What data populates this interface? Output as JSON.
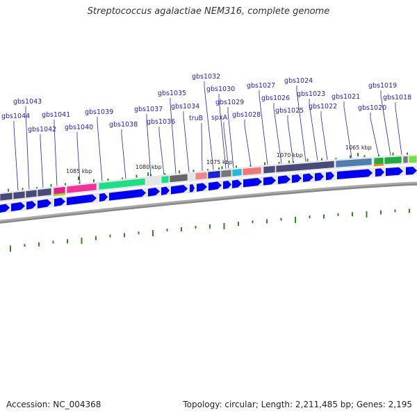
{
  "title": "Streptococcus agalactiae NEM316, complete genome",
  "footer": {
    "accession": "Accession: NC_004368",
    "summary": "Topology: circular; Length: 2,211,485 bp; Genes: 2,195"
  },
  "colors": {
    "forward_gene": "#0000ee",
    "track_band": "#e6e6e6",
    "backbone": "#888888",
    "gc_tick": "#2a8a1a",
    "label_line": "#1f1fb3"
  },
  "kbp_markers": [
    "1085 kbp",
    "1080 kbp",
    "1075 kbp",
    "1070 kbp",
    "1065 kbp"
  ],
  "gene_labels": [
    "gbs1044",
    "gbs1043",
    "gbs1042",
    "gbs1041",
    "gbs1040",
    "gbs1039",
    "gbs1038",
    "gbs1037",
    "gbs1036",
    "gbs1035",
    "gbs1034",
    "truB",
    "gbs1032",
    "gbs1030",
    "spxA",
    "gbs1029",
    "gbs1028",
    "gbs1027",
    "gbs1026",
    "gbs1025",
    "gbs1024",
    "gbs1023",
    "gbs1022",
    "gbs1021",
    "gbs1020",
    "gbs1019",
    "gbs1018"
  ]
}
